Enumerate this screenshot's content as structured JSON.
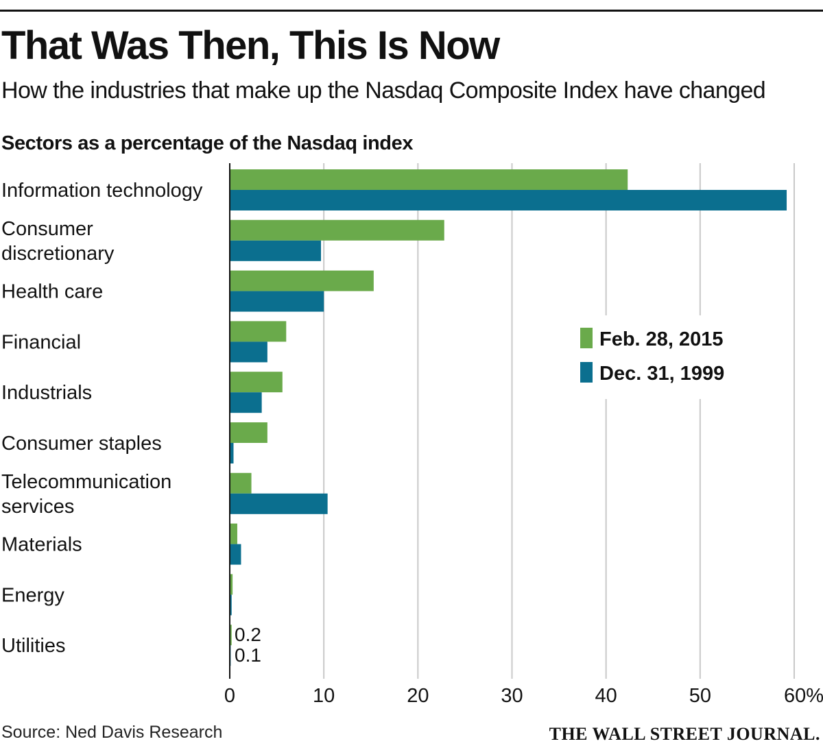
{
  "chart_data": {
    "type": "bar",
    "orientation": "horizontal",
    "title": "That Was Then, This Is Now",
    "subtitle": "How the industries that make up the Nasdaq Composite Index have changed",
    "ylabel": "Sectors as a percentage of the Nasdaq index",
    "xlabel": "",
    "categories": [
      [
        "Information technology"
      ],
      [
        "Consumer",
        "discretionary"
      ],
      [
        "Health care"
      ],
      [
        "Financial"
      ],
      [
        "Industrials"
      ],
      [
        "Consumer staples"
      ],
      [
        "Telecommunication",
        "services"
      ],
      [
        "Materials"
      ],
      [
        "Energy"
      ],
      [
        "Utilities"
      ]
    ],
    "series": [
      {
        "name": "Feb. 28, 2015",
        "color": "#6aaa4b",
        "values": [
          42.3,
          22.8,
          15.3,
          6.0,
          5.6,
          4.0,
          2.3,
          0.8,
          0.3,
          0.2
        ]
      },
      {
        "name": "Dec. 31, 1999",
        "color": "#0b6f8f",
        "values": [
          59.2,
          9.7,
          10.0,
          4.0,
          3.4,
          0.4,
          10.4,
          1.2,
          0.2,
          0.1
        ]
      }
    ],
    "xlim": [
      0,
      60
    ],
    "xticks": [
      "0",
      "10",
      "20",
      "30",
      "40",
      "50",
      "60%"
    ],
    "xtick_values": [
      0,
      10,
      20,
      30,
      40,
      50,
      60
    ],
    "annotations": {
      "utilities_2015": "0.2",
      "utilities_1999": "0.1"
    },
    "legend_position": "right"
  },
  "footer": {
    "source": "Source: Ned Davis Research",
    "brand": "THE WALL STREET JOURNAL."
  }
}
